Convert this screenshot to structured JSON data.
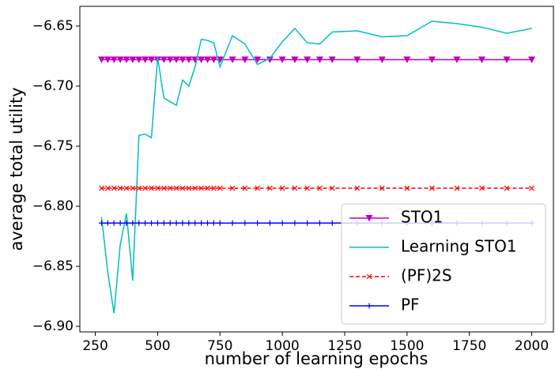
{
  "chart_data": {
    "type": "line",
    "x_label": "number of learning epochs",
    "y_label": "average total utility",
    "x": [
      275,
      300,
      325,
      350,
      375,
      400,
      425,
      450,
      475,
      500,
      525,
      550,
      575,
      600,
      625,
      650,
      675,
      700,
      725,
      750,
      800,
      850,
      900,
      950,
      1000,
      1050,
      1100,
      1150,
      1200,
      1300,
      1400,
      1500,
      1600,
      1700,
      1800,
      1900,
      2000
    ],
    "series": [
      {
        "name": "STO1",
        "color": "#bf00bf",
        "marker": "v",
        "linestyle": "-",
        "values": [
          -6.678,
          -6.678,
          -6.678,
          -6.678,
          -6.678,
          -6.678,
          -6.678,
          -6.678,
          -6.678,
          -6.678,
          -6.678,
          -6.678,
          -6.678,
          -6.678,
          -6.678,
          -6.678,
          -6.678,
          -6.678,
          -6.678,
          -6.678,
          -6.678,
          -6.678,
          -6.678,
          -6.678,
          -6.678,
          -6.678,
          -6.678,
          -6.678,
          -6.678,
          -6.678,
          -6.678,
          -6.678,
          -6.678,
          -6.678,
          -6.678,
          -6.678,
          -6.678
        ]
      },
      {
        "name": "Learning STO1",
        "color": "#00bfbf",
        "marker": "none",
        "linestyle": "-",
        "values": [
          -6.809,
          -6.855,
          -6.889,
          -6.832,
          -6.806,
          -6.862,
          -6.741,
          -6.74,
          -6.743,
          -6.676,
          -6.71,
          -6.713,
          -6.716,
          -6.695,
          -6.7,
          -6.684,
          -6.661,
          -6.662,
          -6.664,
          -6.684,
          -6.658,
          -6.665,
          -6.682,
          -6.677,
          -6.663,
          -6.652,
          -6.664,
          -6.665,
          -6.655,
          -6.654,
          -6.659,
          -6.658,
          -6.646,
          -6.648,
          -6.651,
          -6.656,
          -6.652
        ]
      },
      {
        "name": "(PF)2S",
        "color": "#ff0000",
        "marker": "x",
        "linestyle": "--",
        "values": [
          -6.785,
          -6.785,
          -6.785,
          -6.785,
          -6.785,
          -6.785,
          -6.785,
          -6.785,
          -6.785,
          -6.785,
          -6.785,
          -6.785,
          -6.785,
          -6.785,
          -6.785,
          -6.785,
          -6.785,
          -6.785,
          -6.785,
          -6.785,
          -6.785,
          -6.785,
          -6.785,
          -6.785,
          -6.785,
          -6.785,
          -6.785,
          -6.785,
          -6.785,
          -6.785,
          -6.785,
          -6.785,
          -6.785,
          -6.785,
          -6.785,
          -6.785,
          -6.785
        ]
      },
      {
        "name": "PF",
        "color": "#0000ff",
        "marker": "+",
        "linestyle": "-",
        "values": [
          -6.814,
          -6.814,
          -6.814,
          -6.814,
          -6.814,
          -6.814,
          -6.814,
          -6.814,
          -6.814,
          -6.814,
          -6.814,
          -6.814,
          -6.814,
          -6.814,
          -6.814,
          -6.814,
          -6.814,
          -6.814,
          -6.814,
          -6.814,
          -6.814,
          -6.814,
          -6.814,
          -6.814,
          -6.814,
          -6.814,
          -6.814,
          -6.814,
          -6.814,
          -6.814,
          -6.814,
          -6.814,
          -6.814,
          -6.814,
          -6.814,
          -6.814,
          -6.814
        ]
      }
    ],
    "xlim": [
      188,
      2087
    ],
    "ylim": [
      -6.9046,
      -6.6336
    ],
    "xticks": [
      250,
      500,
      750,
      1000,
      1250,
      1500,
      1750,
      2000
    ],
    "yticks": [
      {
        "value": -6.65,
        "label": "−6.65"
      },
      {
        "value": -6.7,
        "label": "−6.70"
      },
      {
        "value": -6.75,
        "label": "−6.75"
      },
      {
        "value": -6.8,
        "label": "−6.80"
      },
      {
        "value": -6.85,
        "label": "−6.85"
      },
      {
        "value": -6.9,
        "label": "−6.90"
      }
    ],
    "legend": "lower right",
    "grid": false
  }
}
